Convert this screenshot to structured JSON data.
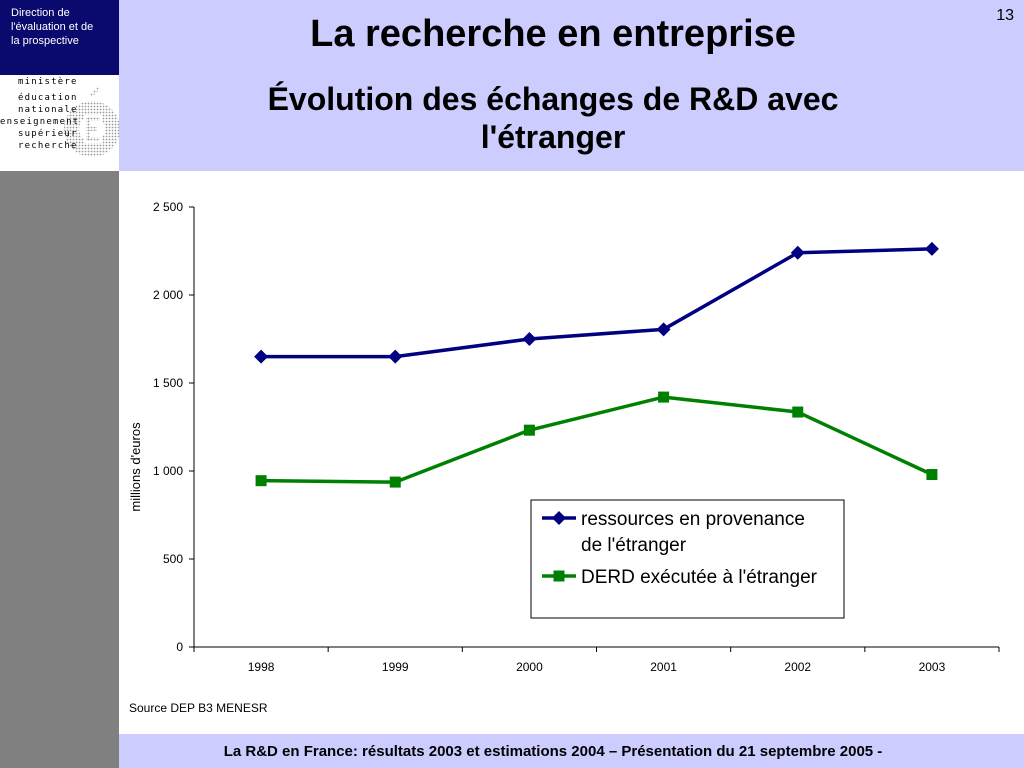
{
  "sidebar": {
    "direction_lines": [
      "Direction de",
      "l'évaluation  et de",
      "la prospective"
    ],
    "logo": {
      "words": [
        "ministère",
        "éducation",
        "nationale",
        "enseignement",
        "supérieur",
        "recherche"
      ]
    }
  },
  "header": {
    "title": "La recherche en entreprise",
    "subtitle_line1": "Évolution des échanges de R&D avec",
    "subtitle_line2": "l'étranger",
    "page_number": "13"
  },
  "chart_data": {
    "type": "line",
    "categories": [
      "1998",
      "1999",
      "2000",
      "2001",
      "2002",
      "2003"
    ],
    "series": [
      {
        "name": "ressources en provenance de l'étranger",
        "legend_lines": [
          "ressources en provenance",
          "de l'étranger"
        ],
        "color": "#000080",
        "marker": "diamond",
        "values": [
          1650,
          1650,
          1750,
          1805,
          2240,
          2262
        ]
      },
      {
        "name": "DERD exécutée à l'étranger",
        "legend_lines": [
          "DERD exécutée à l'étranger"
        ],
        "color": "#008000",
        "marker": "square",
        "values": [
          945,
          937,
          1232,
          1420,
          1335,
          980
        ]
      }
    ],
    "xlabel": "",
    "ylabel": "millions d'euros",
    "ylim": [
      0,
      2500
    ],
    "y_ticks": [
      0,
      500,
      1000,
      1500,
      2000,
      2500
    ],
    "y_tick_labels": [
      "0",
      "500",
      "1 000",
      "1 500",
      "2 000",
      "2 500"
    ],
    "grid": false,
    "legend_position": "lower-right"
  },
  "source": "Source DEP B3 MENESR",
  "footer": "La R&D en France: résultats 2003 et estimations 2004 – Présentation du 21 septembre 2005 -"
}
